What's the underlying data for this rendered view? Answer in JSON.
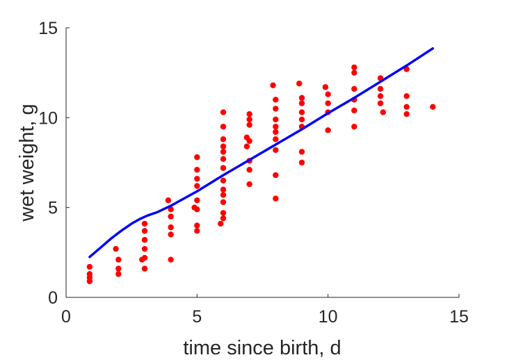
{
  "chart_data": {
    "type": "scatter",
    "title": "",
    "xlabel": "time since birth, d",
    "ylabel": "wet weight, g",
    "xlim": [
      0,
      15
    ],
    "ylim": [
      0,
      15
    ],
    "xticks": [
      "0",
      "5",
      "10",
      "15"
    ],
    "yticks": [
      "0",
      "5",
      "10",
      "15"
    ],
    "grid": false,
    "legend": "none",
    "colors": {
      "points": "#ff0000",
      "fit": "#0000ff",
      "axis": "#262626"
    },
    "series": [
      {
        "kind": "scatter",
        "x": [
          0.9,
          0.9,
          0.9,
          0.9,
          1.9,
          2.0,
          2.0,
          2.0,
          2.9,
          3.0,
          3.0,
          3.0,
          3.0,
          3.0,
          3.0,
          3.9,
          4.0,
          4.0,
          4.0,
          4.0,
          4.0,
          4.9,
          5.0,
          5.0,
          5.0,
          5.0,
          5.0,
          5.0,
          5.0,
          5.0,
          5.9,
          6.0,
          6.0,
          6.0,
          6.0,
          6.0,
          6.0,
          6.0,
          6.0,
          6.0,
          6.0,
          6.0,
          6.0,
          6.0,
          6.9,
          6.9,
          7.0,
          7.0,
          7.0,
          7.0,
          7.0,
          7.0,
          7.0,
          7.9,
          8.0,
          8.0,
          8.0,
          8.0,
          8.0,
          8.0,
          8.0,
          8.0,
          8.0,
          8.9,
          9.0,
          9.0,
          9.0,
          9.0,
          9.0,
          9.0,
          9.0,
          9.9,
          10.0,
          10.0,
          10.0,
          10.0,
          11.0,
          11.0,
          11.0,
          11.0,
          11.0,
          11.0,
          12.0,
          12.0,
          12.0,
          12.0,
          12.1,
          13.0,
          13.0,
          13.0,
          13.0,
          14.0
        ],
        "y": [
          1.7,
          1.3,
          1.1,
          0.9,
          2.7,
          2.1,
          1.6,
          1.3,
          2.1,
          4.1,
          3.7,
          3.2,
          2.7,
          2.2,
          1.6,
          5.4,
          4.9,
          4.5,
          3.9,
          3.5,
          2.1,
          5.0,
          7.8,
          7.1,
          6.6,
          6.2,
          5.4,
          4.9,
          4.0,
          3.7,
          4.1,
          10.3,
          9.5,
          8.8,
          8.4,
          8.1,
          7.7,
          7.2,
          6.5,
          6.0,
          5.7,
          5.3,
          4.7,
          4.4,
          8.9,
          8.4,
          10.2,
          9.9,
          9.6,
          8.7,
          7.6,
          7.1,
          6.3,
          11.8,
          11.0,
          10.5,
          9.9,
          9.5,
          9.2,
          8.8,
          8.2,
          6.8,
          5.5,
          11.9,
          11.1,
          10.8,
          10.3,
          9.9,
          9.5,
          8.1,
          7.5,
          11.7,
          11.3,
          10.8,
          10.3,
          9.3,
          12.8,
          12.5,
          11.6,
          11.0,
          10.4,
          9.5,
          12.2,
          11.6,
          11.2,
          10.8,
          10.3,
          12.7,
          11.2,
          10.6,
          10.2,
          10.6
        ]
      },
      {
        "kind": "line",
        "x": [
          0.9,
          1.3,
          1.7,
          2.1,
          2.5,
          2.8,
          3.1,
          3.5,
          4.0,
          5.0,
          6.0,
          7.0,
          8.0,
          9.0,
          10.0,
          11.0,
          12.0,
          13.0,
          14.0
        ],
        "y": [
          2.25,
          2.75,
          3.25,
          3.7,
          4.1,
          4.35,
          4.55,
          4.75,
          5.1,
          5.9,
          6.8,
          7.65,
          8.5,
          9.35,
          10.25,
          11.1,
          12.0,
          12.9,
          13.85
        ]
      }
    ]
  }
}
